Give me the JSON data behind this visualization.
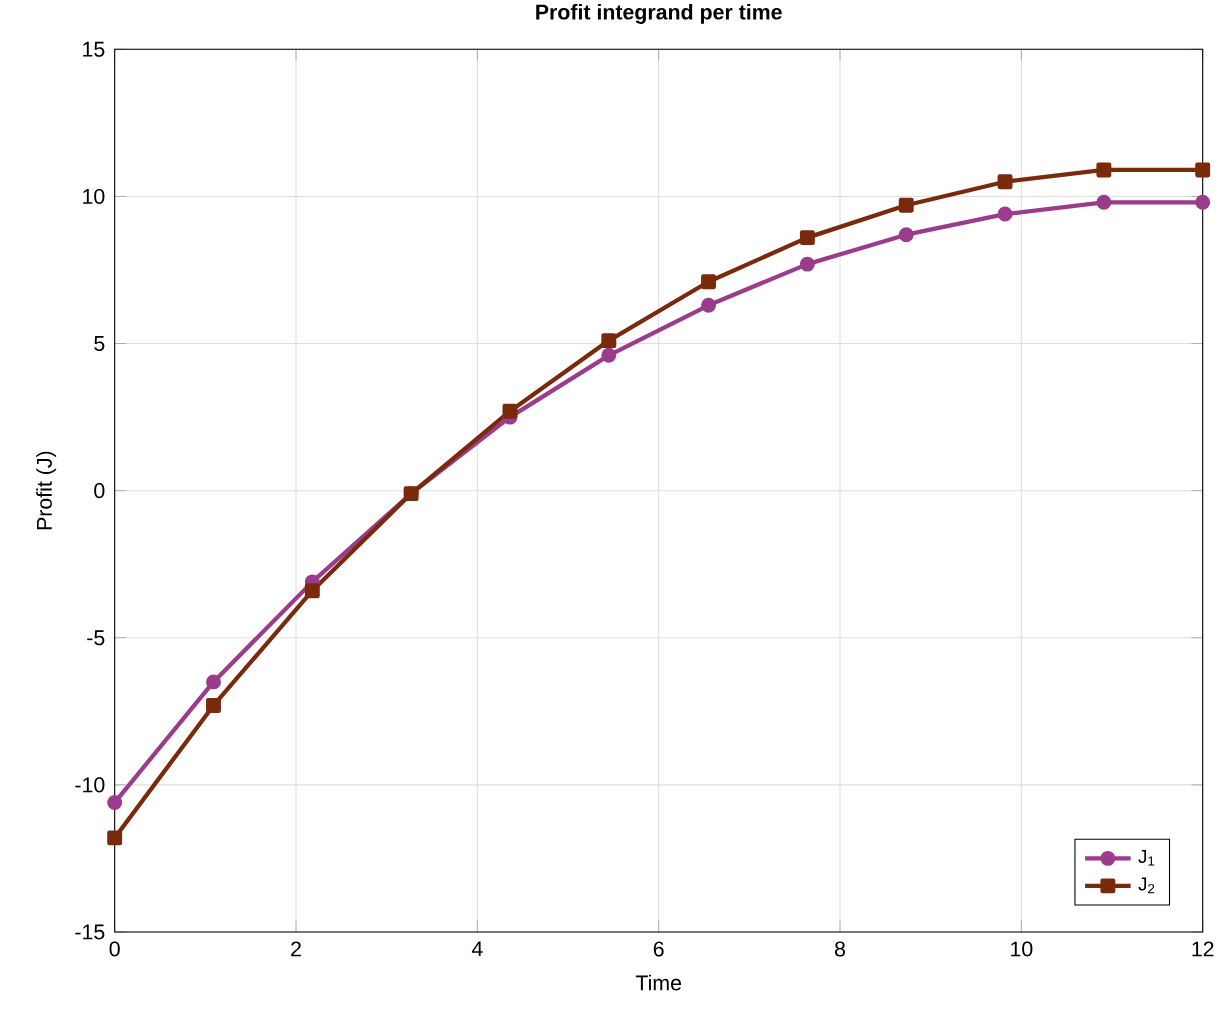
{
  "chart_data": {
    "type": "line",
    "title": "Profit integrand per time",
    "xlabel": "Time",
    "ylabel": "Profit (J)",
    "x": [
      0,
      1.09,
      2.18,
      3.27,
      4.36,
      5.45,
      6.55,
      7.64,
      8.73,
      9.82,
      10.91,
      12
    ],
    "series": [
      {
        "name": "J$_{1}$",
        "color": "#9b3b8b",
        "marker": "circle",
        "values": [
          -10.6,
          -6.5,
          -3.1,
          -0.1,
          2.5,
          4.6,
          6.3,
          7.7,
          8.7,
          9.4,
          9.8,
          9.8
        ]
      },
      {
        "name": "J$_{2}$",
        "color": "#7a2a0c",
        "marker": "square",
        "values": [
          -11.8,
          -7.3,
          -3.4,
          -0.1,
          2.7,
          5.1,
          7.1,
          8.6,
          9.7,
          10.5,
          10.9,
          10.9
        ]
      }
    ],
    "xlim": [
      0,
      12
    ],
    "xticks": [
      0,
      2,
      4,
      6,
      8,
      10,
      12
    ],
    "ylim": [
      -15,
      15
    ],
    "yticks": [
      -15,
      -10,
      -5,
      0,
      5,
      10,
      15
    ],
    "grid": true,
    "legend": "bottom right",
    "line_style": "solid"
  }
}
